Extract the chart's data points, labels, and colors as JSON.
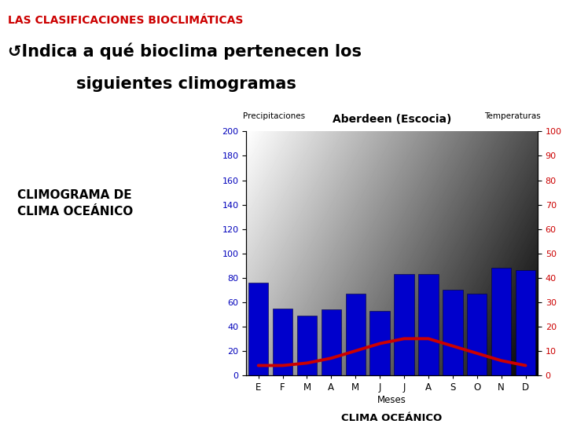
{
  "title": "Aberdeen (Escocia)",
  "left_label": "CLIMOGRAMA DE\nCLIMA OCEÁNICO",
  "xlabel": "Meses",
  "xlabel_bottom": "CLIMA OCEÁNICO",
  "ylabel_left": "Precipitaciones",
  "ylabel_right": "Temperaturas",
  "months": [
    "E",
    "F",
    "M",
    "A",
    "M",
    "J",
    "J",
    "A",
    "S",
    "O",
    "N",
    "D"
  ],
  "precipitation": [
    76,
    55,
    49,
    54,
    67,
    53,
    83,
    83,
    70,
    67,
    88,
    86
  ],
  "temperature": [
    4,
    4,
    5,
    7,
    10,
    13,
    15,
    15,
    12,
    9,
    6,
    4
  ],
  "bar_color": "#0000CC",
  "line_color": "#CC0000",
  "left_axis_color": "#0000BB",
  "right_axis_color": "#CC0000",
  "ylim_left": [
    0,
    200
  ],
  "ylim_right": [
    0,
    100
  ],
  "yticks_left": [
    0,
    20,
    40,
    60,
    80,
    100,
    120,
    140,
    160,
    180,
    200
  ],
  "yticks_right": [
    0,
    10,
    20,
    30,
    40,
    50,
    60,
    70,
    80,
    90,
    100
  ],
  "page_bg": "#FFFFFF",
  "header_color": "#CC0000",
  "header_text": "LAS CLASIFICACIONES BIOCLIMÁTICAS",
  "body_line1": "↺Indica a qué bioclima pertenecen los",
  "body_line2": "siguientes climogramas"
}
